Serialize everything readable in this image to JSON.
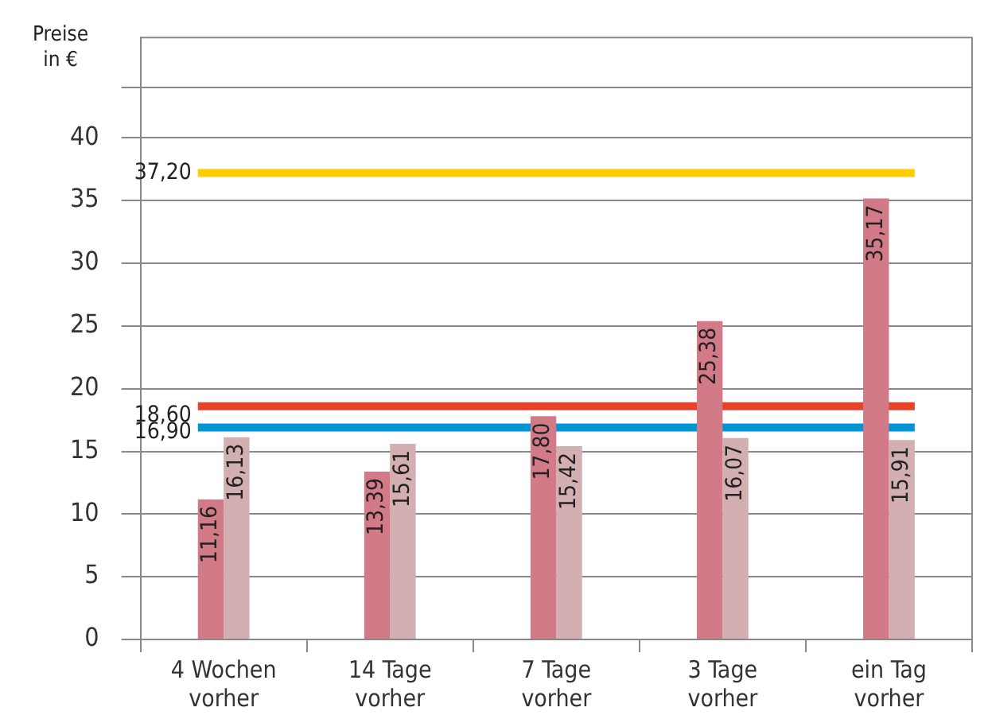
{
  "chart_data": {
    "type": "bar",
    "ylabel": "Preise in €",
    "categories": [
      "4 Wochen vorher",
      "14 Tage vorher",
      "7 Tage vorher",
      "3 Tage vorher",
      "ein Tag vorher"
    ],
    "series": [
      {
        "color": "#d27a87",
        "values": [
          11.16,
          13.39,
          17.8,
          25.38,
          35.17
        ],
        "value_labels": [
          "11,16",
          "13,39",
          "17,80",
          "25,38",
          "35,17"
        ]
      },
      {
        "color": "#d4afb1",
        "values": [
          16.13,
          15.61,
          15.42,
          16.07,
          15.91
        ],
        "value_labels": [
          "16,13",
          "15,61",
          "15,42",
          "16,07",
          "15,91"
        ]
      }
    ],
    "ylim": [
      0,
      48
    ],
    "yticks": [
      0,
      5,
      10,
      15,
      20,
      25,
      30,
      35,
      40,
      {
        "value": 44,
        "label": null
      }
    ],
    "grid": "y",
    "legend": false,
    "ref_lines": [
      {
        "axis": "y",
        "value": 37.2,
        "label": "37,20",
        "color": "#ffcc00"
      },
      {
        "axis": "y",
        "value": 18.6,
        "label": "18,60",
        "color": "#e8412a"
      },
      {
        "axis": "y",
        "value": 16.9,
        "label": "16,90",
        "color": "#0096d6"
      }
    ]
  }
}
